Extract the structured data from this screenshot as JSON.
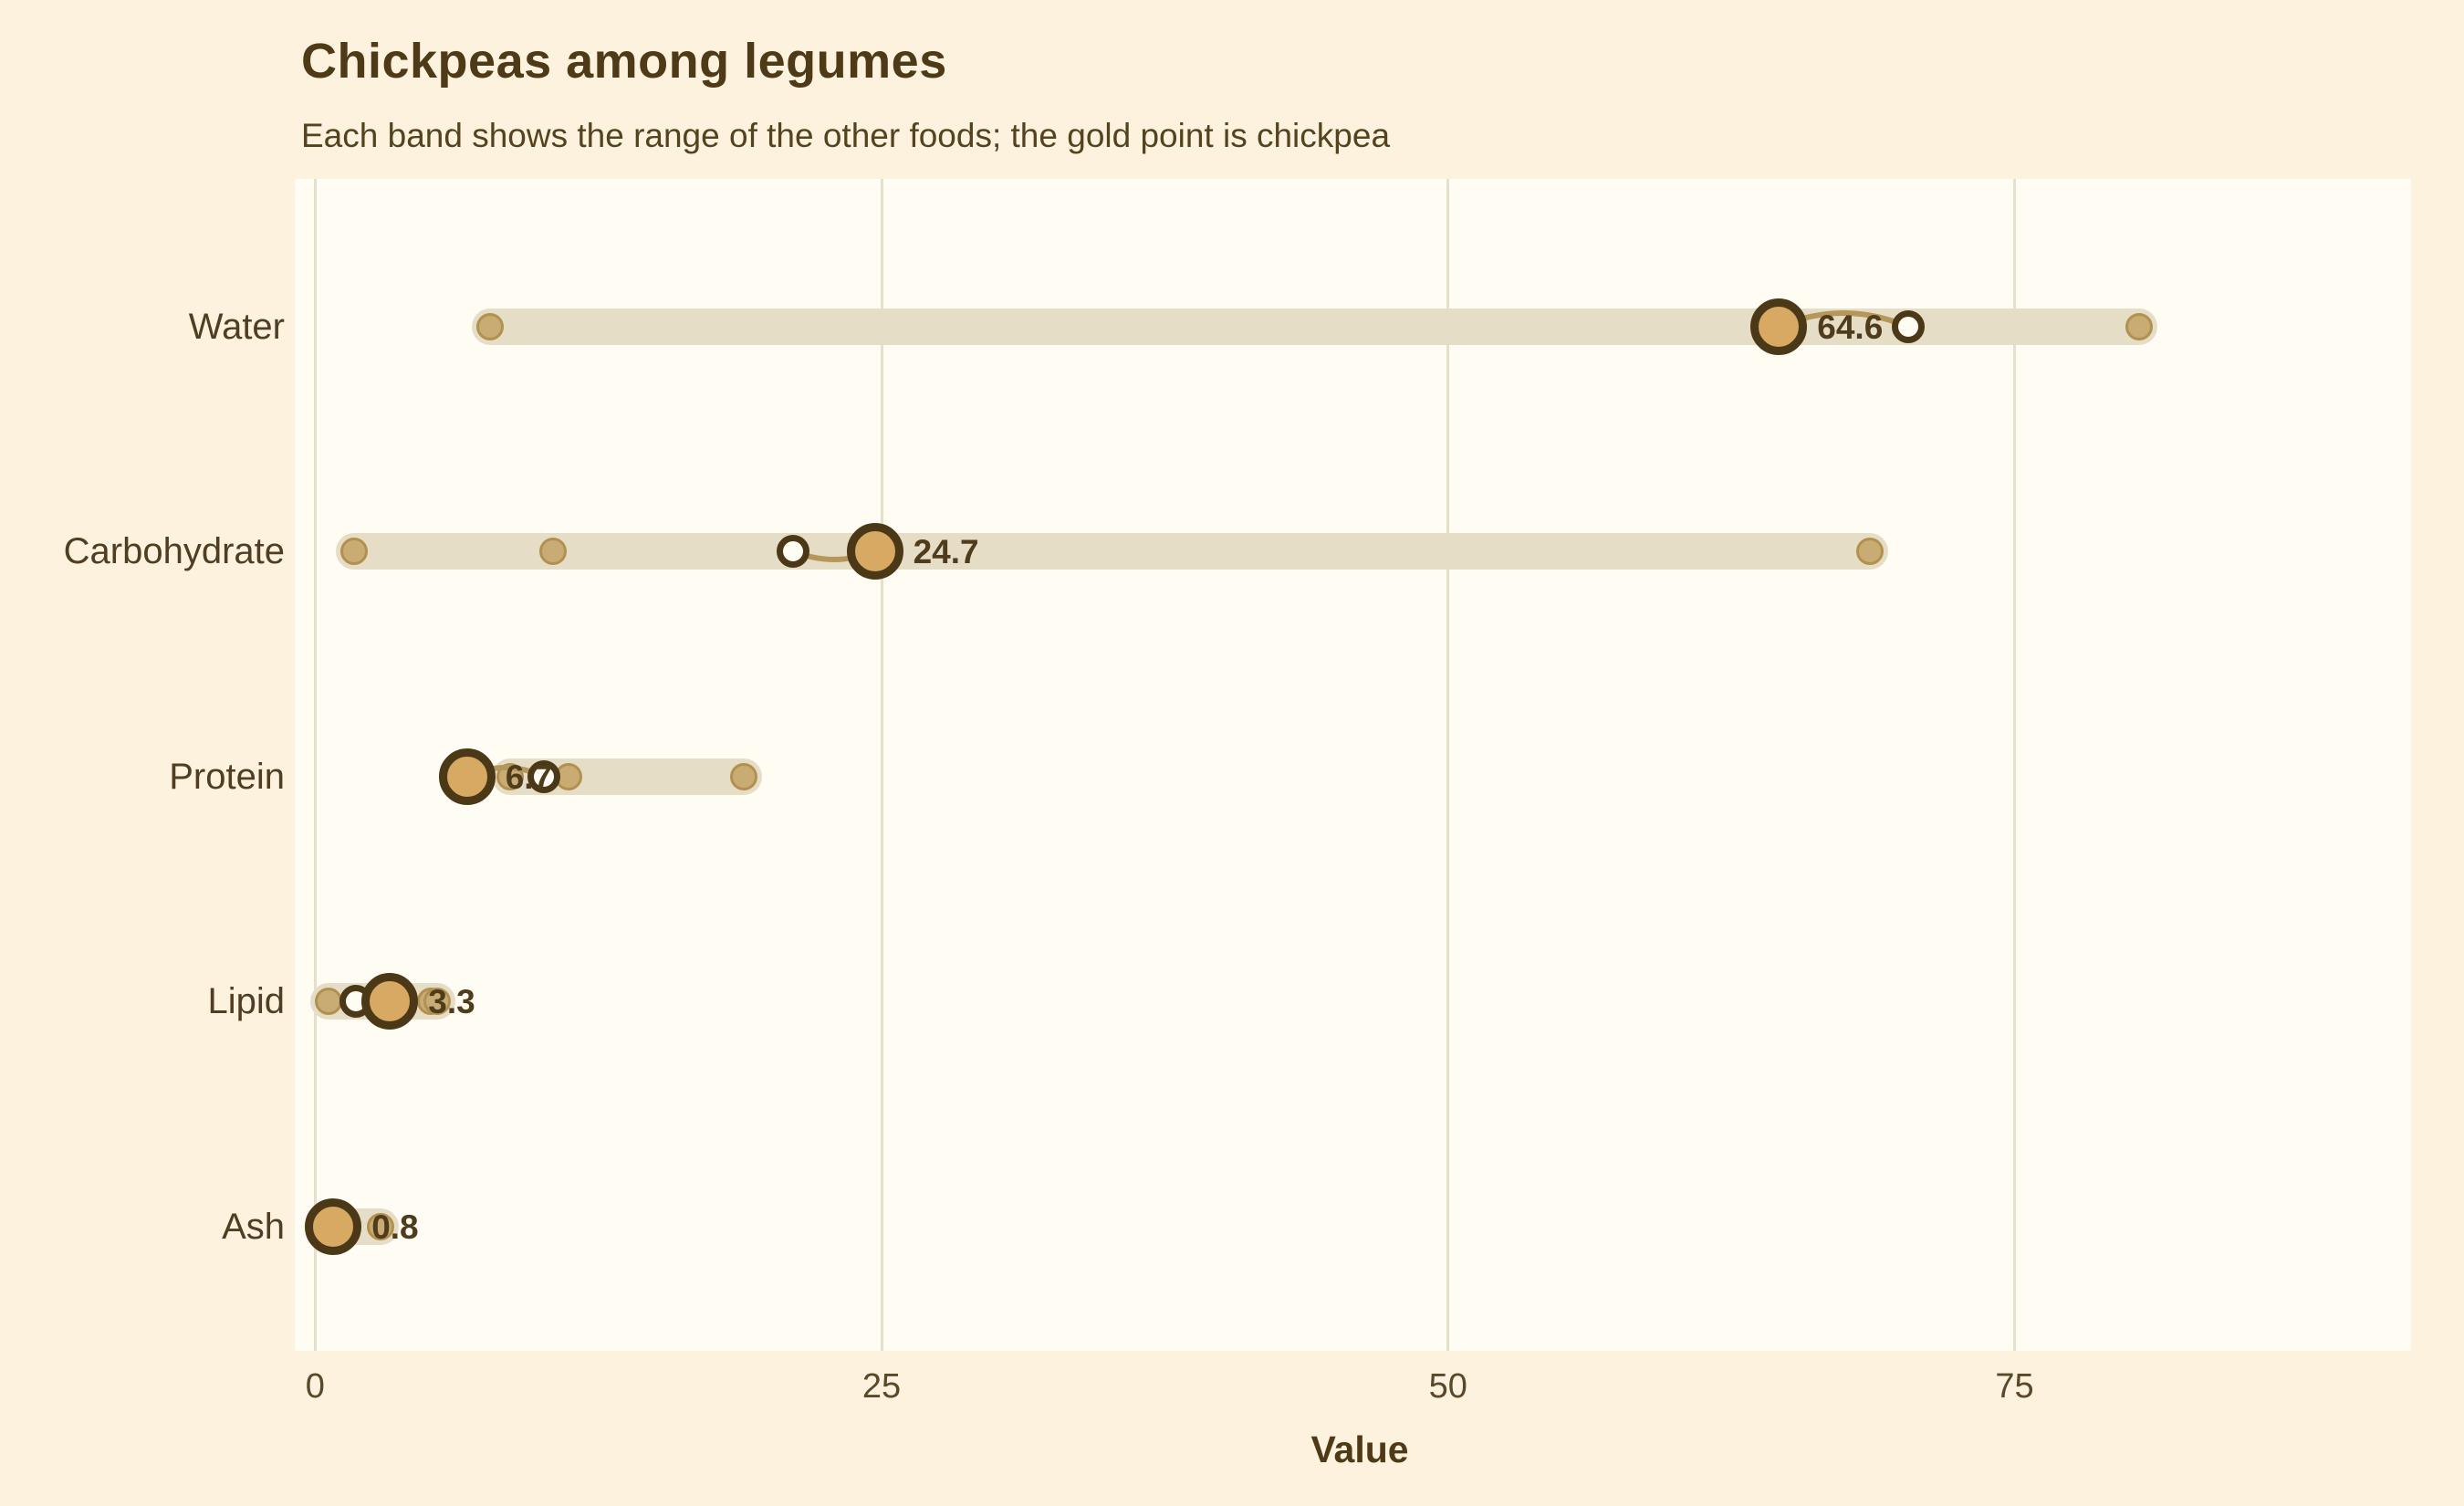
{
  "header": {
    "title": "Chickpeas among legumes",
    "subtitle": "Each band shows the range of the other foods; the gold point is chickpea"
  },
  "chart_data": {
    "type": "dumbbell_range",
    "title": "Chickpeas among legumes",
    "subtitle": "Each band shows the range of the other foods; the gold point is chickpea",
    "xlabel": "Value",
    "ylabel": "",
    "x_ticks": [
      0,
      25,
      50,
      75
    ],
    "x_range": [
      -0.9,
      92.5
    ],
    "grid": "vertical-only",
    "legend": "none",
    "categories": [
      "Water",
      "Carbohydrate",
      "Protein",
      "Lipid",
      "Ash"
    ],
    "rows": [
      {
        "label": "Water",
        "other_points": [
          7.7,
          70.3,
          80.5
        ],
        "band_min": 7.7,
        "band_max": 80.5,
        "open_point": 70.3,
        "chickpea": 64.6,
        "chickpea_label": "64.6",
        "bow": 30
      },
      {
        "label": "Carbohydrate",
        "other_points": [
          1.7,
          10.5,
          68.6
        ],
        "band_min": 1.7,
        "band_max": 68.6,
        "open_point": 21.1,
        "chickpea": 24.7,
        "chickpea_label": "24.7",
        "bow": -18
      },
      {
        "label": "Protein",
        "other_points": [
          8.6,
          11.2,
          18.9
        ],
        "band_min": 8.6,
        "band_max": 18.9,
        "open_point": 10.1,
        "chickpea": 6.7,
        "chickpea_label": "6.7",
        "bow": 20
      },
      {
        "label": "Lipid",
        "other_points": [
          0.6,
          5.1,
          5.4
        ],
        "band_min": 0.6,
        "band_max": 5.4,
        "open_point": 1.8,
        "chickpea": 3.3,
        "chickpea_label": "3.3",
        "bow": -10
      },
      {
        "label": "Ash",
        "other_points": [
          0.75,
          0.9,
          2.9
        ],
        "band_min": 0.75,
        "band_max": 2.9,
        "open_point": 0.9,
        "chickpea": 0.8,
        "chickpea_label": "0.8",
        "bow": 0
      }
    ]
  },
  "colors": {
    "background": "#fcf2de",
    "panel": "#fffcf3",
    "gridline": "#e6dfc9",
    "band": "#e6ddc6",
    "other_dot": "#c9ac74",
    "other_dot_ring": "#b29150",
    "gold_point": "#d7a963",
    "dark_ring": "#4a3817",
    "connector": "#b5975c",
    "text": "#4f3a15"
  }
}
